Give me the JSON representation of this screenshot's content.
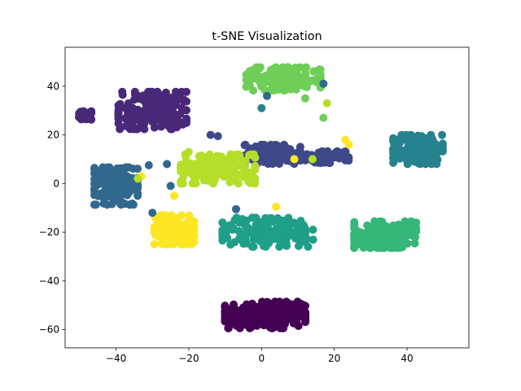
{
  "chart_data": {
    "type": "scatter",
    "title": "t-SNE Visualization",
    "xlabel": "",
    "ylabel": "",
    "xlim": [
      -54,
      57
    ],
    "ylim": [
      -67.5,
      56
    ],
    "xticks": [
      -40,
      -20,
      0,
      20,
      40
    ],
    "yticks": [
      -60,
      -40,
      -20,
      0,
      20,
      40
    ],
    "xtick_labels": [
      "−40",
      "−20",
      "0",
      "20",
      "40"
    ],
    "ytick_labels": [
      "−60",
      "−40",
      "−20",
      "0",
      "20",
      "40"
    ],
    "grid": false,
    "legend": "none",
    "colormap": "viridis",
    "clusters": [
      {
        "label_value": 0,
        "color": "#440154",
        "center": [
          1,
          -54
        ],
        "spread": [
          6.5,
          3.2
        ],
        "count": 260
      },
      {
        "label_value": 1,
        "color": "#482878",
        "center": [
          -30,
          30
        ],
        "spread": [
          5.5,
          4.5
        ],
        "count": 180
      },
      {
        "label_value": 1,
        "color": "#482878",
        "center": [
          -48.5,
          28
        ],
        "spread": [
          1.0,
          1.0
        ],
        "count": 22
      },
      {
        "label_value": 2,
        "color": "#3e4989",
        "center": [
          3,
          12
        ],
        "spread": [
          4.5,
          2.3
        ],
        "count": 120
      },
      {
        "label_value": 2,
        "color": "#3e4989",
        "center": [
          18,
          11
        ],
        "spread": [
          3.5,
          1.5
        ],
        "count": 55
      },
      {
        "label_value": 3,
        "color": "#31688e",
        "center": [
          -40,
          -1
        ],
        "spread": [
          3.5,
          4.5
        ],
        "count": 170
      },
      {
        "label_value": 4,
        "color": "#26828e",
        "center": [
          43,
          14
        ],
        "spread": [
          4.0,
          3.5
        ],
        "count": 160
      },
      {
        "label_value": 5,
        "color": "#1f9e89",
        "center": [
          2,
          -20
        ],
        "spread": [
          7.5,
          3.5
        ],
        "count": 170
      },
      {
        "label_value": 6,
        "color": "#35b779",
        "center": [
          34,
          -21
        ],
        "spread": [
          5.0,
          3.2
        ],
        "count": 170
      },
      {
        "label_value": 7,
        "color": "#6ece58",
        "center": [
          6,
          43
        ],
        "spread": [
          6.0,
          2.8
        ],
        "count": 150
      },
      {
        "label_value": 8,
        "color": "#b5de2b",
        "center": [
          -12,
          6
        ],
        "spread": [
          6.0,
          3.5
        ],
        "count": 170
      },
      {
        "label_value": 9,
        "color": "#fde725",
        "center": [
          -24,
          -19
        ],
        "spread": [
          3.2,
          3.5
        ],
        "count": 150
      }
    ],
    "stray_points": [
      {
        "x": 1.5,
        "y": 36,
        "color": "#31688e"
      },
      {
        "x": 0,
        "y": 31,
        "color": "#26828e"
      },
      {
        "x": 17,
        "y": 41,
        "color": "#31688e"
      },
      {
        "x": 17,
        "y": 27,
        "color": "#6ece58"
      },
      {
        "x": 18,
        "y": 33,
        "color": "#b5de2b"
      },
      {
        "x": 23,
        "y": 18,
        "color": "#fde725"
      },
      {
        "x": 24,
        "y": 16,
        "color": "#fde725"
      },
      {
        "x": -14,
        "y": 20,
        "color": "#3e4989"
      },
      {
        "x": -12,
        "y": 19.5,
        "color": "#3e4989"
      },
      {
        "x": -26,
        "y": 8,
        "color": "#31688e"
      },
      {
        "x": -31,
        "y": 7.5,
        "color": "#31688e"
      },
      {
        "x": -33,
        "y": 3,
        "color": "#fde725"
      },
      {
        "x": -34,
        "y": 2,
        "color": "#b5de2b"
      },
      {
        "x": -25,
        "y": -1,
        "color": "#31688e"
      },
      {
        "x": -24,
        "y": -5,
        "color": "#fde725"
      },
      {
        "x": -30,
        "y": -12,
        "color": "#31688e"
      },
      {
        "x": -7,
        "y": -10.5,
        "color": "#31688e"
      },
      {
        "x": 4,
        "y": -9.5,
        "color": "#fde725"
      },
      {
        "x": 14,
        "y": 10,
        "color": "#b5de2b"
      },
      {
        "x": 9,
        "y": 10,
        "color": "#fde725"
      },
      {
        "x": -21,
        "y": 12,
        "color": "#b5de2b"
      },
      {
        "x": -20,
        "y": 13,
        "color": "#b5de2b"
      },
      {
        "x": 12,
        "y": 35,
        "color": "#6ece58"
      }
    ]
  }
}
